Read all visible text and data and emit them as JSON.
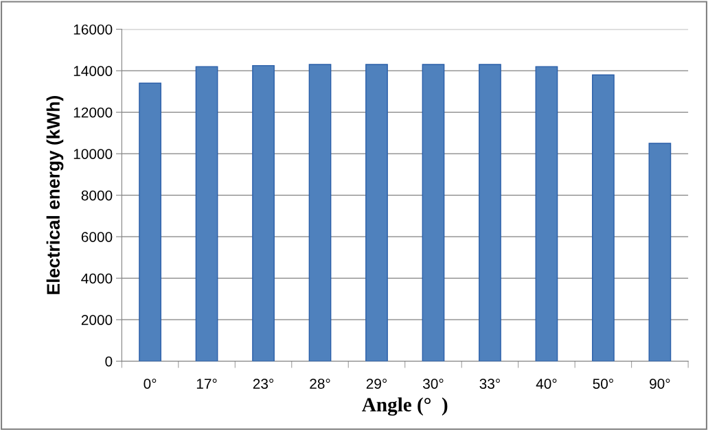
{
  "chart_data": {
    "type": "bar",
    "xlabel": "Angle (°  )",
    "ylabel": "Electrical energy (kWh)",
    "categories": [
      "0°",
      "17°",
      "23°",
      "28°",
      "29°",
      "30°",
      "33°",
      "40°",
      "50°",
      "90°"
    ],
    "values": [
      13400,
      14200,
      14250,
      14300,
      14300,
      14300,
      14300,
      14200,
      13800,
      10500
    ],
    "color": "#4f81bd",
    "ylim": [
      0,
      16000
    ],
    "yticks": [
      0,
      2000,
      4000,
      6000,
      8000,
      10000,
      12000,
      14000,
      16000
    ],
    "grid": "y",
    "legend": false
  }
}
